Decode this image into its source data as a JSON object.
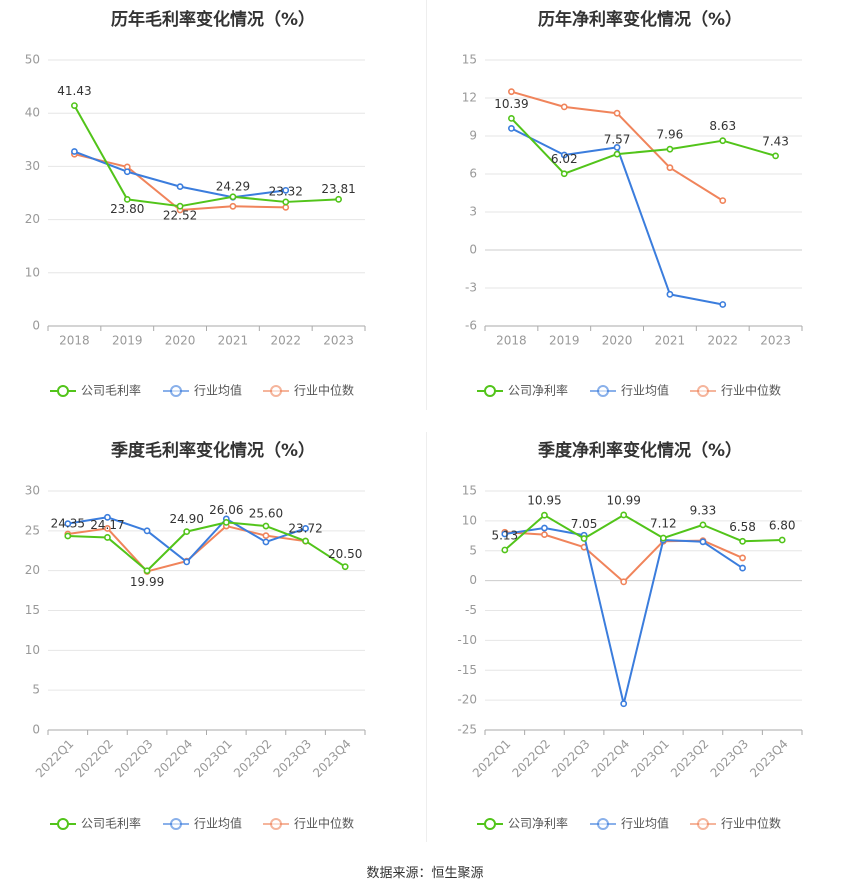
{
  "colors": {
    "company": "#52c41a",
    "avg": "#3b7ddd",
    "median": "#f0845b",
    "grid": "#e6e6e6",
    "axis": "#999999",
    "title": "#333333"
  },
  "source": "数据来源：恒生聚源",
  "chart_data": [
    {
      "type": "line",
      "title": "历年毛利率变化情况（%）",
      "categories": [
        "2018",
        "2019",
        "2020",
        "2021",
        "2022",
        "2023"
      ],
      "yticks": [
        0,
        10,
        20,
        30,
        40,
        50
      ],
      "ylim": [
        0,
        50
      ],
      "series": [
        {
          "name": "公司毛利率",
          "key": "company",
          "values": [
            41.43,
            23.8,
            22.52,
            24.29,
            23.32,
            23.81
          ],
          "labels": [
            "41.43",
            "23.80",
            "22.52",
            "24.29",
            "23.32",
            "23.81"
          ]
        },
        {
          "name": "行业均值",
          "key": "avg",
          "values": [
            32.8,
            29.0,
            26.2,
            24.2,
            25.5,
            null
          ]
        },
        {
          "name": "行业中位数",
          "key": "median",
          "values": [
            32.3,
            29.9,
            21.8,
            22.5,
            22.3,
            null
          ]
        }
      ],
      "legend": "bottom",
      "rotate_x": false
    },
    {
      "type": "line",
      "title": "历年净利率变化情况（%）",
      "categories": [
        "2018",
        "2019",
        "2020",
        "2021",
        "2022",
        "2023"
      ],
      "yticks": [
        -6,
        -3,
        0,
        3,
        6,
        9,
        12,
        15
      ],
      "ylim": [
        -6,
        15
      ],
      "series": [
        {
          "name": "公司净利率",
          "key": "company",
          "values": [
            10.39,
            6.02,
            7.57,
            7.96,
            8.63,
            7.43
          ],
          "labels": [
            "10.39",
            "6.02",
            "7.57",
            "7.96",
            "8.63",
            "7.43"
          ]
        },
        {
          "name": "行业均值",
          "key": "avg",
          "values": [
            9.6,
            7.5,
            8.1,
            -3.5,
            -4.3,
            null
          ]
        },
        {
          "name": "行业中位数",
          "key": "median",
          "values": [
            12.5,
            11.3,
            10.8,
            6.5,
            3.9,
            null
          ]
        }
      ],
      "legend": "bottom",
      "rotate_x": false
    },
    {
      "type": "line",
      "title": "季度毛利率变化情况（%）",
      "categories": [
        "2022Q1",
        "2022Q2",
        "2022Q3",
        "2022Q4",
        "2023Q1",
        "2023Q2",
        "2023Q3",
        "2023Q4"
      ],
      "yticks": [
        0,
        5,
        10,
        15,
        20,
        25,
        30
      ],
      "ylim": [
        0,
        30
      ],
      "series": [
        {
          "name": "公司毛利率",
          "key": "company",
          "values": [
            24.35,
            24.17,
            19.99,
            24.9,
            26.06,
            25.6,
            23.72,
            20.5
          ],
          "labels": [
            "24.35",
            "24.17",
            "19.99",
            "24.90",
            "26.06",
            "25.60",
            "23.72",
            "20.50"
          ]
        },
        {
          "name": "行业均值",
          "key": "avg",
          "values": [
            25.9,
            26.7,
            25.0,
            21.1,
            26.5,
            23.6,
            25.3,
            null
          ]
        },
        {
          "name": "行业中位数",
          "key": "median",
          "values": [
            24.6,
            25.3,
            19.9,
            21.2,
            25.6,
            24.4,
            23.7,
            null
          ]
        }
      ],
      "legend": "bottom",
      "rotate_x": true
    },
    {
      "type": "line",
      "title": "季度净利率变化情况（%）",
      "categories": [
        "2022Q1",
        "2022Q2",
        "2022Q3",
        "2022Q4",
        "2023Q1",
        "2023Q2",
        "2023Q3",
        "2023Q4"
      ],
      "yticks": [
        -25,
        -20,
        -15,
        -10,
        -5,
        0,
        5,
        10,
        15
      ],
      "ylim": [
        -25,
        15
      ],
      "series": [
        {
          "name": "公司净利率",
          "key": "company",
          "values": [
            5.13,
            10.95,
            7.05,
            10.99,
            7.12,
            9.33,
            6.58,
            6.8
          ],
          "labels": [
            "5.13",
            "10.95",
            "7.05",
            "10.99",
            "7.12",
            "9.33",
            "6.58",
            "6.80"
          ]
        },
        {
          "name": "行业均值",
          "key": "avg",
          "values": [
            7.8,
            8.8,
            7.6,
            -20.6,
            6.8,
            6.5,
            2.1,
            null
          ]
        },
        {
          "name": "行业中位数",
          "key": "median",
          "values": [
            8.1,
            7.7,
            5.6,
            -0.2,
            6.6,
            6.7,
            3.8,
            null
          ]
        }
      ],
      "legend": "bottom",
      "rotate_x": true
    }
  ]
}
